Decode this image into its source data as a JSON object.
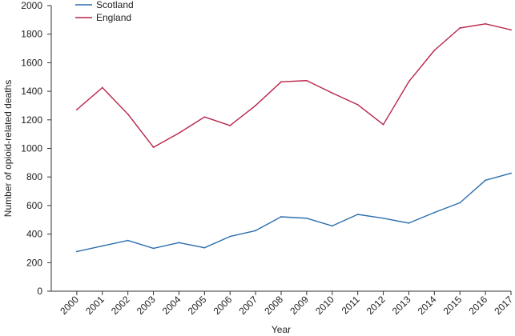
{
  "chart_data": {
    "type": "line",
    "title": "",
    "xlabel": "Year",
    "ylabel": "Number of opioid-related deaths",
    "x": [
      "2000",
      "2001",
      "2002",
      "2003",
      "2004",
      "2005",
      "2006",
      "2007",
      "2008",
      "2009",
      "2010",
      "2011",
      "2012",
      "2013",
      "2014",
      "2015",
      "2016",
      "2017"
    ],
    "ylim": [
      0,
      2000
    ],
    "yticks": [
      0,
      200,
      400,
      600,
      800,
      1000,
      1200,
      1400,
      1600,
      1800,
      2000
    ],
    "grid": false,
    "legend_position": "top-left",
    "series": [
      {
        "name": "Scotland",
        "color": "#2e6fad",
        "values": [
          278,
          317,
          355,
          300,
          340,
          304,
          383,
          424,
          521,
          511,
          457,
          538,
          511,
          477,
          551,
          619,
          777,
          826
        ]
      },
      {
        "name": "England",
        "color": "#b8264a",
        "values": [
          1271,
          1426,
          1240,
          1008,
          1107,
          1220,
          1160,
          1300,
          1466,
          1475,
          1388,
          1306,
          1167,
          1467,
          1686,
          1843,
          1872,
          1830
        ]
      }
    ]
  }
}
